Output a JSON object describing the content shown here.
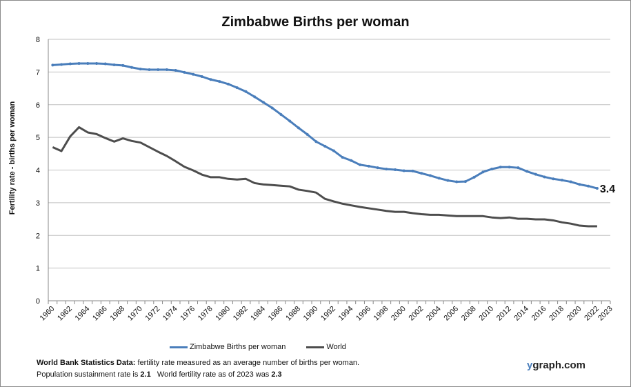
{
  "chart_data": {
    "type": "line",
    "title": "Zimbabwe Births per woman",
    "ylabel": "Fertility rate  - births per woman",
    "xlabel": "",
    "ylim": [
      0,
      8
    ],
    "yticks": [
      "0",
      "1",
      "2",
      "3",
      "4",
      "5",
      "6",
      "7",
      "8"
    ],
    "xticks": [
      "1960",
      "1962",
      "1964",
      "1966",
      "1968",
      "1970",
      "1972",
      "1974",
      "1976",
      "1978",
      "1980",
      "1982",
      "1984",
      "1986",
      "1988",
      "1990",
      "1992",
      "1994",
      "1996",
      "1998",
      "2000",
      "2002",
      "2004",
      "2006",
      "2008",
      "2010",
      "2012",
      "2014",
      "2016",
      "2018",
      "2020",
      "2022",
      "2023"
    ],
    "x_start": 1960,
    "x_end": 2023,
    "grid": "horizontal",
    "legend_position": "bottom",
    "end_label": "3.4",
    "series": [
      {
        "name": "Zimbabwe Births per woman",
        "color": "#4a7ebb",
        "markers": true,
        "values": [
          7.21,
          7.23,
          7.25,
          7.26,
          7.26,
          7.26,
          7.25,
          7.22,
          7.2,
          7.14,
          7.09,
          7.07,
          7.07,
          7.07,
          7.05,
          6.99,
          6.93,
          6.86,
          6.77,
          6.71,
          6.63,
          6.52,
          6.4,
          6.24,
          6.07,
          5.9,
          5.7,
          5.5,
          5.29,
          5.09,
          4.87,
          4.73,
          4.59,
          4.39,
          4.29,
          4.16,
          4.12,
          4.07,
          4.03,
          4.01,
          3.98,
          3.97,
          3.9,
          3.83,
          3.75,
          3.68,
          3.64,
          3.65,
          3.78,
          3.94,
          4.03,
          4.09,
          4.09,
          4.07,
          3.96,
          3.87,
          3.79,
          3.73,
          3.69,
          3.64,
          3.56,
          3.51,
          3.44
        ]
      },
      {
        "name": "World",
        "color": "#4d4d4d",
        "markers": false,
        "values": [
          4.7,
          4.58,
          5.03,
          5.31,
          5.15,
          5.1,
          4.98,
          4.87,
          4.97,
          4.89,
          4.84,
          4.7,
          4.56,
          4.43,
          4.27,
          4.1,
          3.99,
          3.86,
          3.78,
          3.78,
          3.73,
          3.71,
          3.73,
          3.6,
          3.56,
          3.54,
          3.52,
          3.5,
          3.4,
          3.36,
          3.31,
          3.12,
          3.04,
          2.97,
          2.92,
          2.87,
          2.83,
          2.79,
          2.75,
          2.72,
          2.72,
          2.68,
          2.65,
          2.63,
          2.63,
          2.61,
          2.59,
          2.59,
          2.59,
          2.59,
          2.55,
          2.53,
          2.55,
          2.51,
          2.51,
          2.49,
          2.49,
          2.46,
          2.4,
          2.36,
          2.3,
          2.28,
          2.28
        ]
      }
    ]
  },
  "footer": {
    "source_bold": "World Bank Statistics Data:",
    "source_text": " fertility rate measured as an average number  of births per woman.",
    "line2_a": "Population sustainment rate is ",
    "line2_b": "2.1",
    "line2_c": "   World fertility rate as of 2023 was ",
    "line2_d": "2.3",
    "brand_y": "y",
    "brand_rest": "graph.com"
  }
}
